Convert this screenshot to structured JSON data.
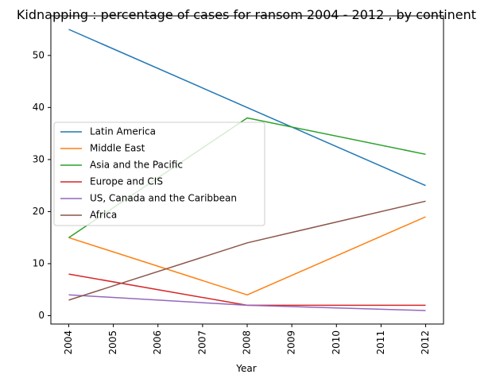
{
  "chart_data": {
    "type": "line",
    "title": "Kidnapping : percentage of cases for ransom 2004 - 2012 , by continent",
    "xlabel": "Year",
    "ylabel": "",
    "x": [
      2004,
      2008,
      2012
    ],
    "xticks": [
      "2004",
      "2005",
      "2006",
      "2007",
      "2008",
      "2009",
      "2010",
      "2011",
      "2012"
    ],
    "yticks": [
      "0",
      "10",
      "20",
      "30",
      "40",
      "50"
    ],
    "xlim": [
      2003.6,
      2012.4
    ],
    "ylim": [
      -1.6,
      57.6
    ],
    "grid": false,
    "legend_position": "center-left",
    "series": [
      {
        "name": "Latin America",
        "values": [
          55,
          40,
          25
        ],
        "color": "#1f77b4"
      },
      {
        "name": "Middle East",
        "values": [
          15,
          4,
          19
        ],
        "color": "#ff7f0e"
      },
      {
        "name": "Asia and the Pacific",
        "values": [
          15,
          38,
          31
        ],
        "color": "#2ca02c"
      },
      {
        "name": "Europe and CIS",
        "values": [
          8,
          2,
          2
        ],
        "color": "#d62728"
      },
      {
        "name": "US, Canada and the Caribbean",
        "values": [
          4,
          2,
          1
        ],
        "color": "#9467bd"
      },
      {
        "name": "Africa",
        "values": [
          3,
          14,
          22
        ],
        "color": "#8c564b"
      }
    ]
  }
}
